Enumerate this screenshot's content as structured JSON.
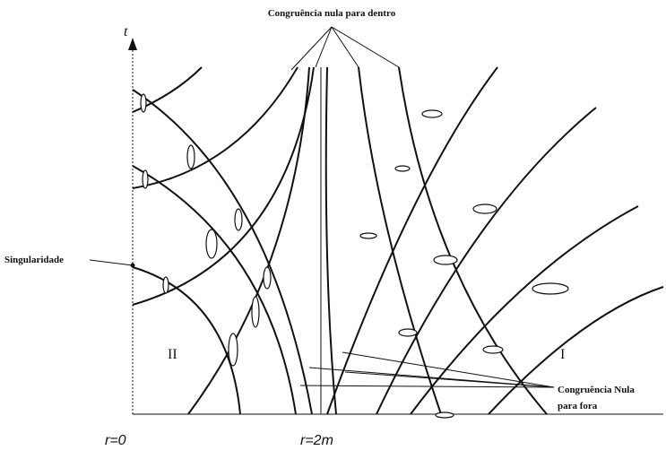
{
  "labels": {
    "top": "Congruência nula para dentro",
    "t_axis": "t",
    "singularity": "Singularidade",
    "region_2": "II",
    "region_1": "I",
    "bottom_right_line1": "Congruência Nula",
    "bottom_right_line2": "para fora",
    "r0": "r=0",
    "r2m": "r=2m"
  }
}
